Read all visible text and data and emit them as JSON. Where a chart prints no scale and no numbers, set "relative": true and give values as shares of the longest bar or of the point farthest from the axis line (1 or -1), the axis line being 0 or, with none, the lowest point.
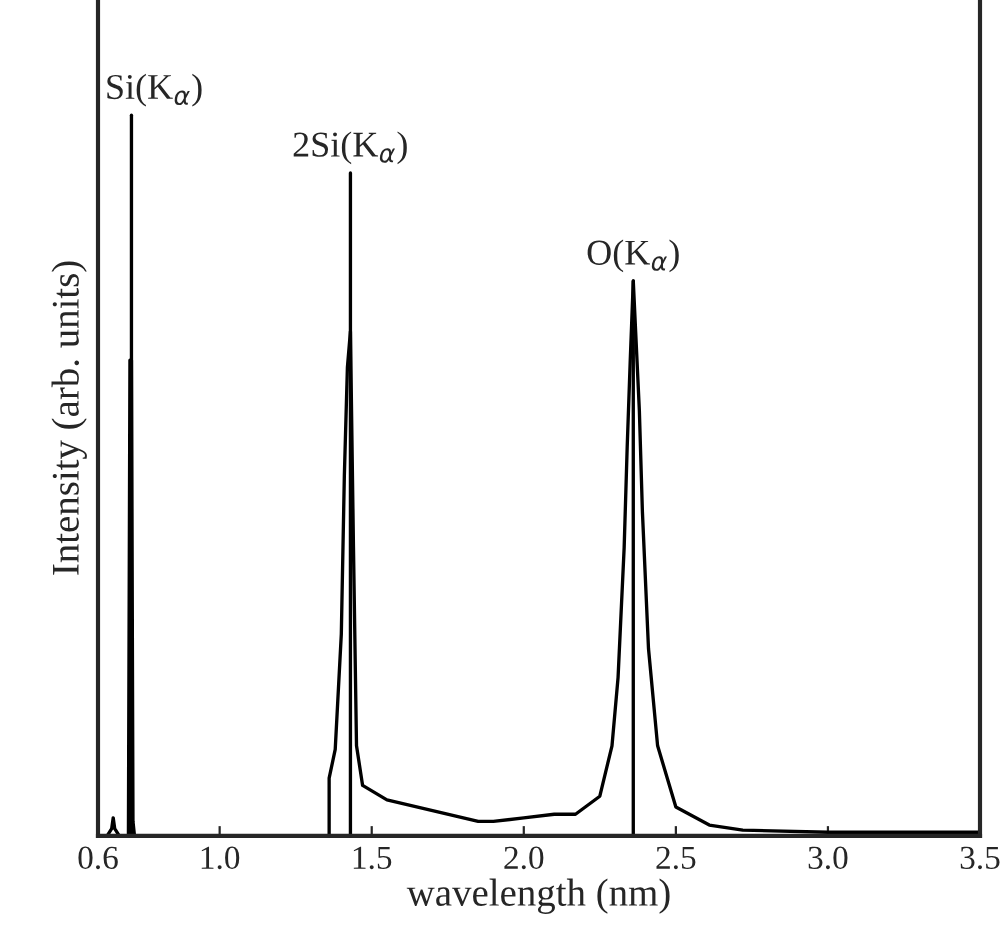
{
  "chart_data": {
    "type": "line",
    "relative": true,
    "xlabel": "wavelength (nm)",
    "ylabel": "Intensity (arb. units)",
    "xlim": [
      0.6,
      3.5
    ],
    "xticks": [
      {
        "value": 0.6,
        "label": "0.6"
      },
      {
        "value": 1.0,
        "label": "1.0"
      },
      {
        "value": 1.5,
        "label": "1.5"
      },
      {
        "value": 2.0,
        "label": "2.0"
      },
      {
        "value": 2.5,
        "label": "2.5"
      },
      {
        "value": 3.0,
        "label": "3.0"
      },
      {
        "value": 3.5,
        "label": "3.5"
      }
    ],
    "tick_labels": "x",
    "grid": false,
    "legend": false,
    "series": [
      {
        "color": "#000000",
        "x": [
          0.6,
          0.63,
          0.645,
          0.65,
          0.655,
          0.67,
          0.7,
          0.705,
          0.71,
          0.715,
          0.72,
          1.36,
          1.36,
          1.38,
          1.4,
          1.41,
          1.42,
          1.43,
          1.44,
          1.45,
          1.47,
          1.55,
          1.7,
          1.85,
          1.9,
          2.0,
          2.1,
          2.17,
          2.25,
          2.29,
          2.31,
          2.33,
          2.34,
          2.35,
          2.36,
          2.38,
          2.39,
          2.41,
          2.44,
          2.5,
          2.61,
          2.72,
          3.0,
          3.5
        ],
        "values": [
          0,
          0,
          0.01,
          0.025,
          0.01,
          0,
          0,
          0.66,
          0.66,
          0.02,
          0,
          0,
          0.08,
          0.12,
          0.28,
          0.5,
          0.65,
          0.7,
          0.4,
          0.125,
          0.07,
          0.05,
          0.035,
          0.02,
          0.02,
          0.025,
          0.03,
          0.03,
          0.055,
          0.125,
          0.22,
          0.4,
          0.54,
          0.66,
          0.77,
          0.59,
          0.45,
          0.26,
          0.125,
          0.04,
          0.015,
          0.008,
          0.005,
          0.005
        ]
      },
      {
        "color": "#000000",
        "x": [
          0.71,
          0.71
        ],
        "values": [
          0,
          1.0
        ]
      },
      {
        "color": "#000000",
        "x": [
          1.43,
          1.43
        ],
        "values": [
          0,
          0.92
        ]
      },
      {
        "color": "#000000",
        "x": [
          2.36,
          2.36
        ],
        "values": [
          0,
          0.77
        ]
      }
    ],
    "annotations": [
      {
        "text": "Si(K$_{α}$)",
        "x": 0.71,
        "y": 1.0
      },
      {
        "text": "2Si(K$_{α}$)",
        "x": 1.43,
        "y": 0.92
      },
      {
        "text": "O(K$_{α}$)",
        "x": 2.36,
        "y": 0.77
      }
    ]
  }
}
